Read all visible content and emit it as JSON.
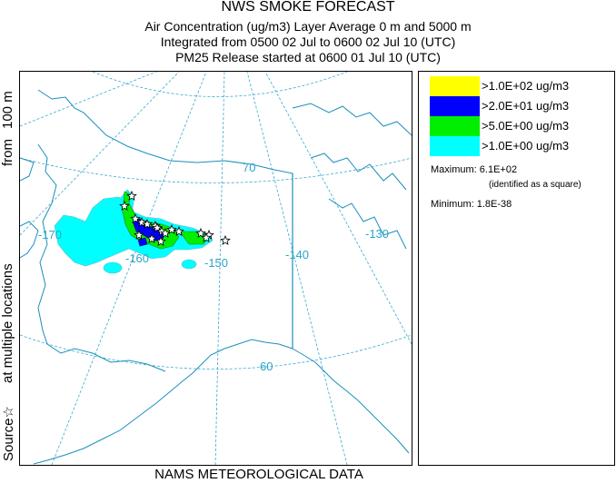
{
  "header": {
    "title": "NWS SMOKE FORECAST",
    "line1": "Air Concentration (ug/m3) Layer Average    0 m and  5000 m",
    "line2": "Integrated from 0500 02 Jul to 0600 02 Jul 10 (UTC)",
    "line3": "PM25 Release started at 0600 01 Jul 10 (UTC)"
  },
  "side_label": {
    "from": "from",
    "height": "100 m",
    "locations": "at multiple locations",
    "source": "Source☆"
  },
  "footer": {
    "text": "NAMS METEOROLOGICAL DATA"
  },
  "legend": {
    "entries": [
      {
        "label": ">1.0E+02 ug/m3",
        "color": "#ffff00"
      },
      {
        "label": ">2.0E+01 ug/m3",
        "color": "#0000ff"
      },
      {
        "label": ">5.0E+00 ug/m3",
        "color": "#00ee00"
      },
      {
        "label": ">1.0E+00 ug/m3",
        "color": "#00ffff"
      }
    ],
    "maximum": "Maximum: 6.1E+02",
    "identified": "(identified as a square)",
    "minimum": "Minimum: 1.8E-38"
  },
  "map": {
    "grid_labels": {
      "lat70": "70",
      "lat60": "60",
      "lon_m170": "-170",
      "lon_m160": "-160",
      "lon_m150": "-150",
      "lon_m140": "-140",
      "lon_m130": "-130"
    },
    "colors": {
      "coast": "#1a8fbd",
      "grid": "#3aa9d0",
      "border": "#1a8fbd",
      "smoke_low": "#00ffff",
      "smoke_mid": "#00ee00",
      "smoke_high": "#0000ff"
    },
    "source_marker_count": 18
  }
}
